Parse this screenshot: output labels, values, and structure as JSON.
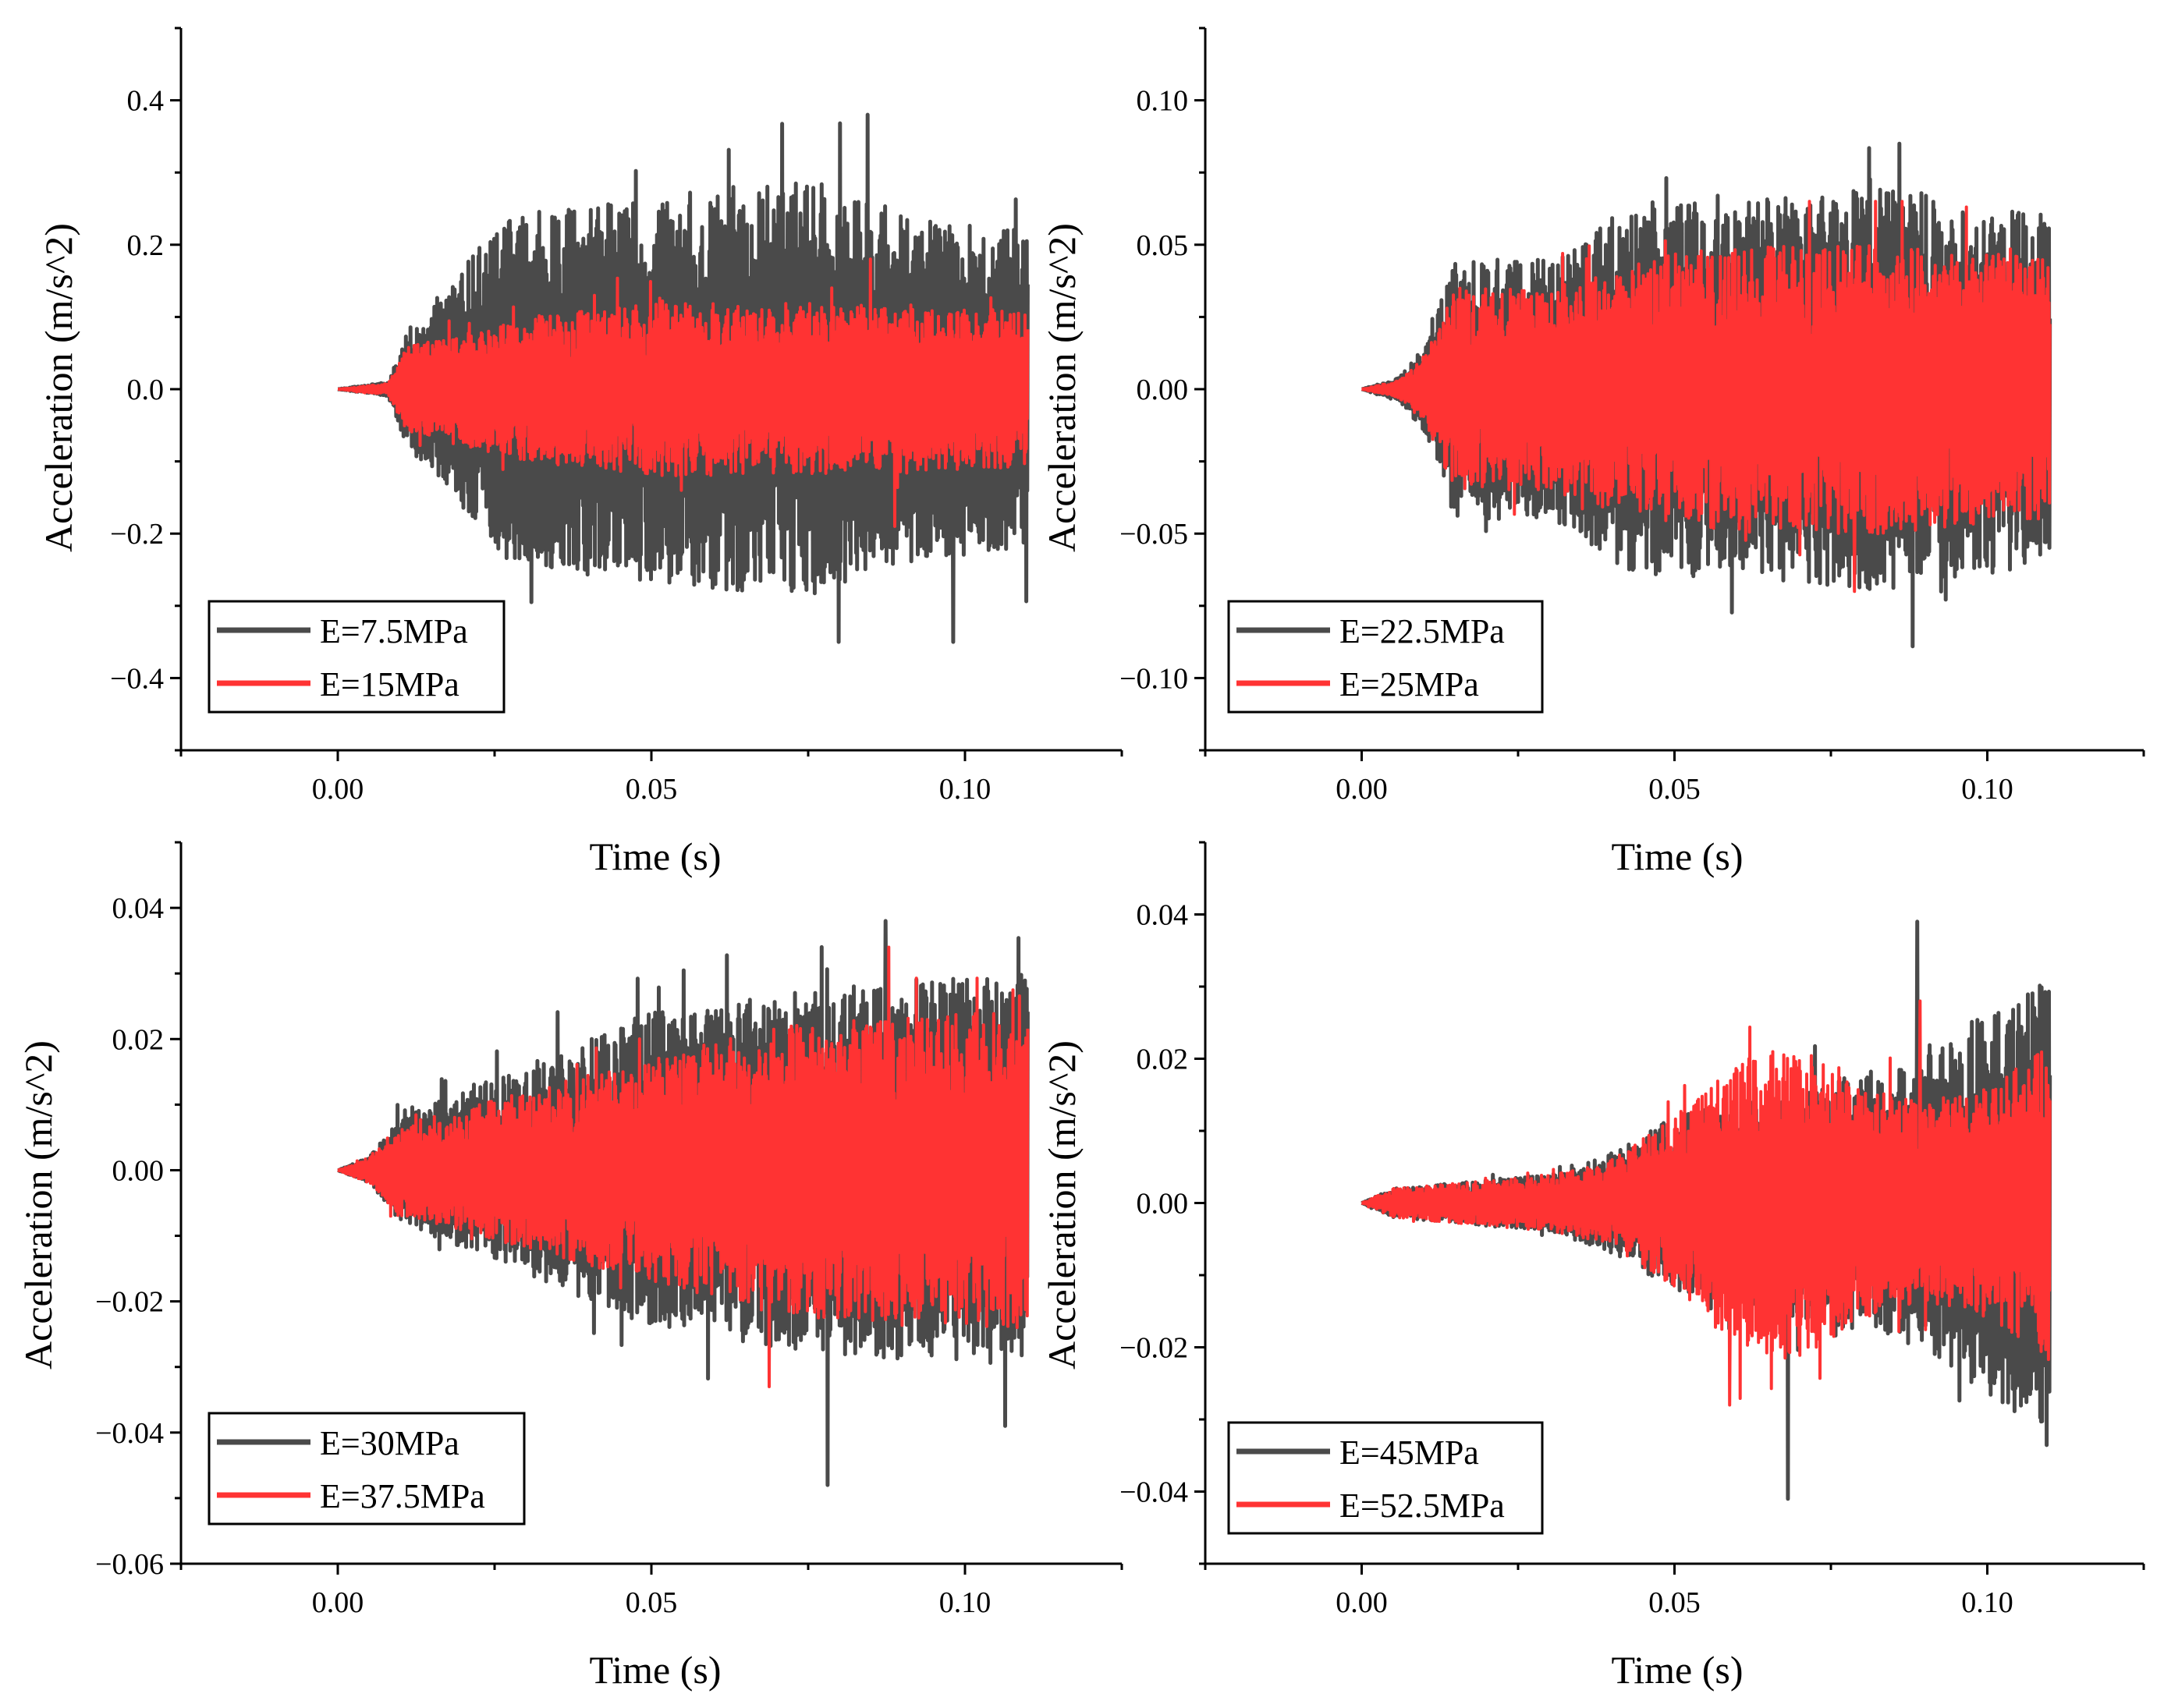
{
  "colors": {
    "series_dark": "#4a4a4a",
    "series_red": "#ff3333",
    "axis": "#000000",
    "background": "#ffffff"
  },
  "chart_data": [
    {
      "type": "line",
      "xlabel": "Time (s)",
      "ylabel": "Acceleration (m/s^2)",
      "xlim": [
        -0.025,
        0.125
      ],
      "ylim": [
        -0.5,
        0.5
      ],
      "xticks": [
        0.0,
        0.05,
        0.1
      ],
      "xtick_labels": [
        "0.00",
        "0.05",
        "0.10"
      ],
      "yticks": [
        -0.4,
        -0.2,
        0.0,
        0.2,
        0.4
      ],
      "ytick_labels": [
        "−0.4",
        "−0.2",
        "0.0",
        "0.2",
        "0.4"
      ],
      "legend_position": "bottom-left",
      "t_end": 0.11,
      "series": [
        {
          "name": "E=7.5MPa",
          "color": "#4a4a4a",
          "envelope_t": [
            0.0,
            0.008,
            0.011,
            0.02,
            0.027,
            0.05,
            0.075,
            0.09,
            0.11
          ],
          "envelope_a": [
            0.0,
            0.01,
            0.08,
            0.17,
            0.24,
            0.27,
            0.29,
            0.24,
            0.22
          ],
          "peak_max": 0.38,
          "peak_min": -0.35
        },
        {
          "name": "E=15MPa",
          "color": "#ff3333",
          "envelope_t": [
            0.0,
            0.008,
            0.011,
            0.03,
            0.05,
            0.07,
            0.09,
            0.11
          ],
          "envelope_a": [
            0.0,
            0.008,
            0.06,
            0.1,
            0.12,
            0.12,
            0.115,
            0.11
          ],
          "peak_max": 0.18,
          "peak_min": -0.19
        }
      ]
    },
    {
      "type": "line",
      "xlabel": "Time (s)",
      "ylabel": "Acceleration (m/s^2)",
      "xlim": [
        -0.025,
        0.125
      ],
      "ylim": [
        -0.125,
        0.125
      ],
      "xticks": [
        0.0,
        0.05,
        0.1
      ],
      "xtick_labels": [
        "0.00",
        "0.05",
        "0.10"
      ],
      "yticks": [
        -0.1,
        -0.05,
        0.0,
        0.05,
        0.1
      ],
      "ytick_labels": [
        "−0.10",
        "−0.05",
        "0.00",
        "0.05",
        "0.10"
      ],
      "legend_position": "bottom-left",
      "t_end": 0.11,
      "series": [
        {
          "name": "E=22.5MPa",
          "color": "#4a4a4a",
          "envelope_t": [
            0.0,
            0.006,
            0.01,
            0.015,
            0.03,
            0.044,
            0.06,
            0.085,
            0.11
          ],
          "envelope_a": [
            0.0,
            0.004,
            0.015,
            0.045,
            0.045,
            0.065,
            0.065,
            0.07,
            0.06
          ],
          "peak_max": 0.085,
          "peak_min": -0.089
        },
        {
          "name": "E=25MPa",
          "color": "#ff3333",
          "envelope_t": [
            0.0,
            0.006,
            0.01,
            0.015,
            0.03,
            0.044,
            0.06,
            0.085,
            0.11
          ],
          "envelope_a": [
            0.0,
            0.003,
            0.012,
            0.035,
            0.035,
            0.045,
            0.05,
            0.05,
            0.045
          ],
          "peak_max": 0.065,
          "peak_min": -0.07
        }
      ]
    },
    {
      "type": "line",
      "xlabel": "Time (s)",
      "ylabel": "Acceleration (m/s^2)",
      "xlim": [
        -0.025,
        0.125
      ],
      "ylim": [
        -0.06,
        0.05
      ],
      "xticks": [
        0.0,
        0.05,
        0.1
      ],
      "xtick_labels": [
        "0.00",
        "0.05",
        "0.10"
      ],
      "yticks": [
        -0.06,
        -0.04,
        -0.02,
        0.0,
        0.02,
        0.04
      ],
      "ytick_labels": [
        "−0.06",
        "−0.04",
        "−0.02",
        "0.00",
        "0.02",
        "0.04"
      ],
      "legend_position": "bottom-left",
      "t_end": 0.11,
      "series": [
        {
          "name": "E=30MPa",
          "color": "#4a4a4a",
          "envelope_t": [
            0.0,
            0.005,
            0.01,
            0.03,
            0.05,
            0.07,
            0.09,
            0.11
          ],
          "envelope_a": [
            0.0,
            0.002,
            0.008,
            0.016,
            0.024,
            0.027,
            0.029,
            0.03
          ],
          "peak_max": 0.038,
          "peak_min": -0.048
        },
        {
          "name": "E=37.5MPa",
          "color": "#ff3333",
          "envelope_t": [
            0.0,
            0.005,
            0.01,
            0.03,
            0.05,
            0.07,
            0.09,
            0.11
          ],
          "envelope_a": [
            0.0,
            0.002,
            0.007,
            0.012,
            0.017,
            0.022,
            0.024,
            0.024
          ],
          "peak_max": 0.034,
          "peak_min": -0.033
        }
      ]
    },
    {
      "type": "line",
      "xlabel": "Time (s)",
      "ylabel": "Acceleration (m/s^2)",
      "xlim": [
        -0.025,
        0.125
      ],
      "ylim": [
        -0.05,
        0.05
      ],
      "xticks": [
        0.0,
        0.05,
        0.1
      ],
      "xtick_labels": [
        "0.00",
        "0.05",
        "0.10"
      ],
      "yticks": [
        -0.04,
        -0.02,
        0.0,
        0.02,
        0.04
      ],
      "ytick_labels": [
        "−0.04",
        "−0.02",
        "0.00",
        "0.02",
        "0.04"
      ],
      "legend_position": "bottom-left",
      "t_end": 0.11,
      "series": [
        {
          "name": "E=45MPa",
          "color": "#4a4a4a",
          "envelope_t": [
            0.0,
            0.005,
            0.03,
            0.04,
            0.05,
            0.07,
            0.09,
            0.1,
            0.11
          ],
          "envelope_a": [
            0.0,
            0.002,
            0.004,
            0.007,
            0.012,
            0.016,
            0.02,
            0.027,
            0.032
          ],
          "peak_max": 0.039,
          "peak_min": -0.041
        },
        {
          "name": "E=52.5MPa",
          "color": "#ff3333",
          "envelope_t": [
            0.0,
            0.005,
            0.03,
            0.04,
            0.05,
            0.06,
            0.07,
            0.08,
            0.09,
            0.1,
            0.11
          ],
          "envelope_a": [
            0.0,
            0.002,
            0.004,
            0.006,
            0.012,
            0.02,
            0.022,
            0.016,
            0.014,
            0.016,
            0.022
          ],
          "peak_max": 0.028,
          "peak_min": -0.028
        }
      ]
    }
  ]
}
